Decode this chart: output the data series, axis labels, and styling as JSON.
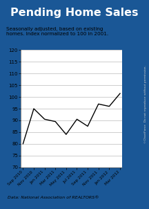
{
  "title": "Pending Home Sales",
  "subtitle": "Seasonally adjusted, based on existing\nhomes. Index normalized to 100 in 2001.",
  "source": "Data: National Association of REALTORS®",
  "watermark": "©ChartForce  Do not reproduce without permission.",
  "x_labels": [
    "Sep 2010",
    "Nov 2010",
    "Jan 2011",
    "Mar 2011",
    "May 2011",
    "Jul 2011",
    "Sep 2011",
    "Nov 2011",
    "Jan 2012",
    "Mar 2012"
  ],
  "y_values": [
    80.0,
    95.0,
    90.5,
    89.5,
    84.0,
    90.5,
    87.5,
    97.0,
    96.0,
    101.5
  ],
  "ylim": [
    70,
    120
  ],
  "yticks": [
    70,
    75,
    80,
    85,
    90,
    95,
    100,
    105,
    110,
    115,
    120
  ],
  "line_color": "#000000",
  "title_bg_color": "#1a5796",
  "title_text_color": "#ffffff",
  "plot_bg_color": "#ffffff",
  "outer_bg_color": "#1a5796",
  "inner_bg_color": "#e8e8e8",
  "grid_color": "#bbbbbb"
}
